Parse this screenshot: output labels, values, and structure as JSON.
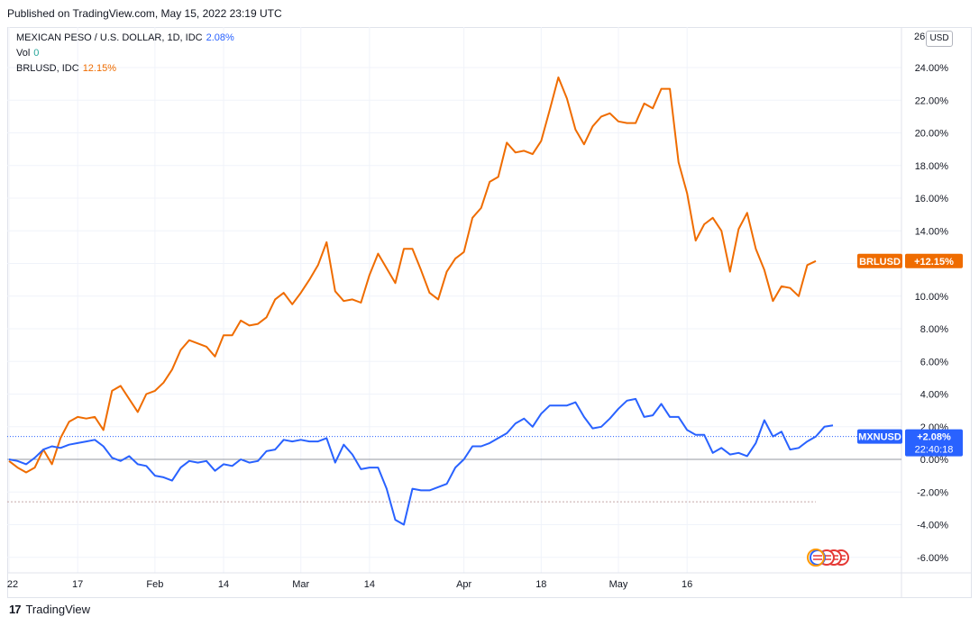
{
  "header": {
    "published_text": "Published on TradingView.com, May 15, 2022 23:19 UTC"
  },
  "legend": {
    "main_symbol": "MEXICAN PESO / U.S. DOLLAR, 1D, IDC",
    "main_change": "2.08%",
    "vol_label": "Vol",
    "vol_value": "0",
    "compare_symbol": "BRLUSD, IDC",
    "compare_change": "12.15%"
  },
  "scale_button": "USD",
  "footer": {
    "brand": "TradingView",
    "logo_mark": "17"
  },
  "colors": {
    "mxn": "#2962ff",
    "brl": "#ef6c00",
    "zero_line": "#9598a1",
    "dashed_line": "#c5a8a8"
  },
  "price_labels": {
    "brl": {
      "name": "BRLUSD",
      "value": "+12.15%"
    },
    "mxn": {
      "name": "MXNUSD",
      "value": "+2.08%",
      "countdown": "22:40:18"
    }
  },
  "chart_data": {
    "type": "line",
    "x_ticks": [
      {
        "label": "22",
        "i": 0
      },
      {
        "label": "17",
        "i": 8
      },
      {
        "label": "Feb",
        "i": 17
      },
      {
        "label": "14",
        "i": 25
      },
      {
        "label": "Mar",
        "i": 34
      },
      {
        "label": "14",
        "i": 42
      },
      {
        "label": "Apr",
        "i": 53
      },
      {
        "label": "18",
        "i": 62
      },
      {
        "label": "May",
        "i": 71
      },
      {
        "label": "16",
        "i": 79
      }
    ],
    "y_ticks": [
      "24.00%",
      "22.00%",
      "20.00%",
      "18.00%",
      "16.00%",
      "14.00%",
      "12.00%",
      "10.00%",
      "8.00%",
      "6.00%",
      "4.00%",
      "2.00%",
      "0.00%",
      "-2.00%",
      "-4.00%",
      "-6.00%"
    ],
    "y_tick_values": [
      24,
      22,
      20,
      18,
      16,
      14,
      12,
      10,
      8,
      6,
      4,
      2,
      0,
      -2,
      -4,
      -6
    ],
    "y_top_label": "26",
    "ylim": [
      -6.6,
      26
    ],
    "y_unit": "%",
    "reference_lines": [
      0,
      -2.6
    ],
    "series": [
      {
        "name": "BRLUSD",
        "values": [
          -0.1,
          -0.5,
          -0.8,
          -0.5,
          0.6,
          -0.3,
          1.3,
          2.3,
          2.6,
          2.5,
          2.6,
          1.8,
          4.2,
          4.5,
          3.7,
          2.9,
          4.0,
          4.2,
          4.7,
          5.5,
          6.7,
          7.3,
          7.1,
          6.9,
          6.3,
          7.6,
          7.6,
          8.5,
          8.2,
          8.3,
          8.7,
          9.8,
          10.2,
          9.5,
          10.2,
          11.0,
          11.9,
          13.3,
          10.3,
          9.7,
          9.8,
          9.6,
          11.3,
          12.6,
          11.7,
          10.8,
          12.9,
          12.9,
          11.6,
          10.2,
          9.8,
          11.5,
          12.3,
          12.7,
          14.8,
          15.4,
          17.0,
          17.3,
          19.4,
          18.8,
          18.9,
          18.7,
          19.5,
          21.4,
          23.4,
          22.1,
          20.2,
          19.3,
          20.4,
          21.0,
          21.2,
          20.7,
          20.6,
          20.6,
          21.8,
          21.5,
          22.7,
          22.7,
          18.2,
          16.3,
          13.4,
          14.4,
          14.8,
          14.0,
          11.5,
          14.1,
          15.1,
          12.9,
          11.6,
          9.7,
          10.6,
          10.5,
          10.0,
          11.9,
          12.15
        ]
      },
      {
        "name": "MXNUSD",
        "values": [
          0.0,
          -0.1,
          -0.3,
          0.1,
          0.6,
          0.8,
          0.7,
          0.9,
          1.0,
          1.1,
          1.2,
          0.8,
          0.1,
          -0.1,
          0.2,
          -0.3,
          -0.4,
          -1.0,
          -1.1,
          -1.3,
          -0.5,
          -0.1,
          -0.2,
          -0.1,
          -0.7,
          -0.3,
          -0.4,
          0.0,
          -0.2,
          -0.1,
          0.5,
          0.6,
          1.2,
          1.1,
          1.2,
          1.1,
          1.1,
          1.3,
          -0.2,
          0.9,
          0.3,
          -0.6,
          -0.5,
          -0.5,
          -1.8,
          -3.7,
          -4.0,
          -1.8,
          -1.9,
          -1.9,
          -1.7,
          -1.5,
          -0.5,
          0.0,
          0.8,
          0.8,
          1.0,
          1.3,
          1.6,
          2.2,
          2.5,
          2.0,
          2.8,
          3.3,
          3.3,
          3.3,
          3.5,
          2.6,
          1.9,
          2.0,
          2.5,
          3.1,
          3.6,
          3.7,
          2.6,
          2.7,
          3.4,
          2.6,
          2.6,
          1.8,
          1.5,
          1.5,
          0.4,
          0.7,
          0.3,
          0.4,
          0.2,
          1.0,
          2.4,
          1.4,
          1.7,
          0.6,
          0.7,
          1.1,
          1.4,
          2.0,
          2.08
        ]
      }
    ]
  }
}
